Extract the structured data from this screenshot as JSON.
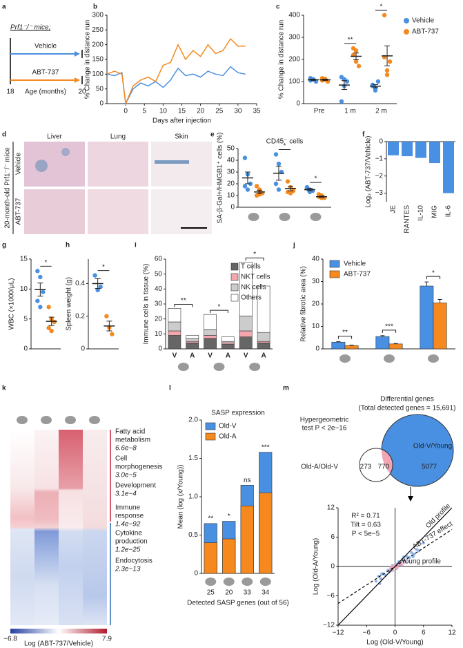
{
  "panel_labels": [
    "a",
    "b",
    "c",
    "d",
    "e",
    "f",
    "g",
    "h",
    "i",
    "j",
    "k",
    "l",
    "m"
  ],
  "diagram_a": {
    "title": "Prf1⁻/⁻ mice;",
    "arms": [
      {
        "name": "Vehicle",
        "color": "#4a90e2"
      },
      {
        "name": "ABT-737",
        "color": "#f5891f"
      }
    ],
    "start": "18",
    "end": "20",
    "axis_label": "Age (months)"
  },
  "images_d": {
    "columns": [
      "Liver",
      "Lung",
      "Skin"
    ],
    "rows": [
      "Vehicle",
      "ABT-737"
    ],
    "group_label": "20-month-old Prf1⁻/⁻ mice"
  },
  "chart_data": [
    {
      "type": "line",
      "xlabel": "Days after injection",
      "ylabel": "% Change in distance run",
      "x": [
        -5,
        -3,
        -1,
        0,
        2,
        4,
        6,
        8,
        10,
        12,
        14,
        16,
        18,
        20,
        22,
        24,
        26,
        28,
        30,
        32
      ],
      "xlim": [
        -5,
        35
      ],
      "xticks": [
        0,
        5,
        10,
        15,
        20,
        25,
        30,
        35
      ],
      "ylim": [
        0,
        300
      ],
      "yticks": [
        0,
        50,
        100,
        150,
        200,
        250,
        300
      ],
      "series": [
        {
          "color": "#4a90e2",
          "values": [
            100,
            95,
            105,
            0,
            50,
            70,
            60,
            75,
            55,
            80,
            120,
            95,
            100,
            90,
            110,
            100,
            95,
            125,
            105,
            100
          ]
        },
        {
          "color": "#f5891f",
          "values": [
            100,
            110,
            100,
            0,
            60,
            80,
            90,
            75,
            130,
            140,
            200,
            150,
            180,
            160,
            200,
            170,
            180,
            220,
            195,
            195
          ]
        }
      ]
    },
    {
      "type": "dot",
      "ylabel": "% Change in distance run",
      "legend": "right",
      "categories": [
        "Pre",
        "1 m",
        "2 m"
      ],
      "ylim": [
        0,
        400
      ],
      "yticks": [
        0,
        100,
        200,
        300,
        400
      ],
      "significance": [
        null,
        "**",
        "*"
      ],
      "series": [
        {
          "name": "Vehicle",
          "color": "#4a90e2",
          "groups": [
            {
              "points": [
                105,
                110,
                100,
                115,
                108
              ],
              "mean": 108,
              "sem": 3
            },
            {
              "points": [
                120,
                80,
                100,
                10,
                110
              ],
              "mean": 84,
              "sem": 20
            },
            {
              "points": [
                85,
                70,
                100,
                80,
                60
              ],
              "mean": 79,
              "sem": 7
            }
          ]
        },
        {
          "name": "ABT-737",
          "color": "#f5891f",
          "groups": [
            {
              "points": [
                105,
                112,
                100,
                115,
                108
              ],
              "mean": 108,
              "sem": 3
            },
            {
              "points": [
                250,
                190,
                170,
                220,
                240
              ],
              "mean": 214,
              "sem": 15
            },
            {
              "points": [
                400,
                150,
                190,
                210,
                130
              ],
              "mean": 216,
              "sem": 45
            }
          ]
        }
      ]
    },
    {
      "type": "dot",
      "title": "CD45⁻ cells",
      "ylabel": "SA-β-Gal+/HMGB1⁺ cells (%)",
      "categories": [
        null,
        null,
        null
      ],
      "ylim": [
        0,
        50
      ],
      "yticks": [
        0,
        10,
        20,
        30,
        40,
        50
      ],
      "significance": [
        null,
        "*",
        "*"
      ],
      "series": [
        {
          "color": "#4a90e2",
          "groups": [
            {
              "points": [
                42,
                28,
                20,
                18,
                15
              ],
              "mean": 25,
              "sem": 5
            },
            {
              "points": [
                45,
                37,
                30,
                20,
                15
              ],
              "mean": 29,
              "sem": 6
            },
            {
              "points": [
                17,
                15,
                14,
                16,
                13
              ],
              "mean": 15,
              "sem": 1
            }
          ]
        },
        {
          "color": "#f5891f",
          "groups": [
            {
              "points": [
                18,
                15,
                12,
                10,
                11
              ],
              "mean": 13,
              "sem": 1.5
            },
            {
              "points": [
                22,
                17,
                14,
                13,
                12
              ],
              "mean": 16,
              "sem": 2
            },
            {
              "points": [
                11,
                10,
                8,
                9,
                8
              ],
              "mean": 9,
              "sem": 0.6
            }
          ]
        }
      ]
    },
    {
      "type": "bar",
      "ylabel": "Log₂ (ABT-737/Vehicle)",
      "color": "#4a90e2",
      "categories": [
        "JE",
        "RANTES",
        "IL-10",
        "MIG",
        "IL-6"
      ],
      "values": [
        -0.8,
        -0.85,
        -0.95,
        -1.25,
        -3.0
      ],
      "ylim": [
        -3.5,
        0
      ],
      "yticks": [
        0,
        {
          "value": -1,
          "label": "−1"
        },
        {
          "value": -2,
          "label": "−2"
        },
        {
          "value": -3,
          "label": "−3"
        }
      ]
    },
    {
      "type": "dot",
      "ylabel": "WBC (×1000/μL)",
      "categories": [
        null
      ],
      "ylim": [
        0,
        15
      ],
      "yticks": [
        0,
        5,
        10,
        15
      ],
      "significance": [
        "*"
      ],
      "series": [
        {
          "color": "#4a90e2",
          "groups": [
            {
              "points": [
                13,
                12,
                9.5,
                8,
                7
              ],
              "mean": 9.9,
              "sem": 1.1
            }
          ]
        },
        {
          "color": "#f5891f",
          "groups": [
            {
              "points": [
                7,
                5,
                4.5,
                3.5,
                3
              ],
              "mean": 4.6,
              "sem": 0.7
            }
          ]
        }
      ]
    },
    {
      "type": "dot",
      "ylabel": "Spleen weight (g)",
      "categories": [
        null
      ],
      "ylim": [
        0,
        0.55
      ],
      "yticks": [
        0,
        0.2,
        0.4
      ],
      "significance": [
        "*"
      ],
      "series": [
        {
          "color": "#4a90e2",
          "groups": [
            {
              "points": [
                0.45,
                0.36,
                0.38
              ],
              "mean": 0.4,
              "sem": 0.03
            }
          ]
        },
        {
          "color": "#f5891f",
          "groups": [
            {
              "points": [
                0.2,
                0.13,
                0.09
              ],
              "mean": 0.14,
              "sem": 0.03
            }
          ]
        }
      ]
    },
    {
      "type": "stacked_bar",
      "ylabel": "Immune cells in tissue (%)",
      "categories": [
        "V",
        "A",
        "V",
        "A",
        "V",
        "A"
      ],
      "category_colors": [
        "#4a90e2",
        "#f5891f",
        "#4a90e2",
        "#f5891f",
        "#4a90e2",
        "#f5891f"
      ],
      "ylim": [
        0,
        60
      ],
      "yticks": [
        0,
        10,
        20,
        30,
        40,
        50,
        60
      ],
      "significance": [
        "**",
        null,
        "*",
        null,
        "*",
        null
      ],
      "series": [
        {
          "name": "T cells",
          "color": "#666666",
          "values": [
            9,
            4,
            7,
            3,
            8,
            4
          ]
        },
        {
          "name": "NKT cells",
          "color": "#f4a6ae",
          "values": [
            3,
            1,
            2,
            1,
            4,
            1
          ]
        },
        {
          "name": "NK cells",
          "color": "#cccccc",
          "values": [
            6,
            2,
            4,
            1,
            10,
            6
          ]
        },
        {
          "name": "Others",
          "color": "#ffffff",
          "values": [
            9,
            2,
            10,
            3,
            36,
            31
          ]
        }
      ]
    },
    {
      "type": "grouped_bar",
      "ylabel": "Relative fibrotic area (%)",
      "categories": [
        null,
        null,
        null
      ],
      "ylim": [
        0,
        40
      ],
      "yticks": [
        0,
        10,
        20,
        30,
        40
      ],
      "significance": [
        "**",
        "***",
        "*"
      ],
      "series": [
        {
          "name": "Vehicle",
          "color": "#4a90e2",
          "values": [
            3,
            5.5,
            28
          ],
          "errors": [
            0.2,
            0.4,
            1.8
          ]
        },
        {
          "name": "ABT-737",
          "color": "#f5891f",
          "values": [
            1.5,
            2.2,
            20.5
          ],
          "errors": [
            0.2,
            0.2,
            1.5
          ]
        }
      ]
    },
    {
      "type": "overlay_bar",
      "title": "SASP expression",
      "ylabel": "Mean (log (x/Young))",
      "xlabel": "Detected SASP genes (out of 56)",
      "categories": [
        null,
        null,
        null,
        null
      ],
      "detected_genes": [
        25,
        20,
        33,
        34
      ],
      "ylim": [
        0,
        2
      ],
      "yticks": [
        0,
        0.5,
        {
          "value": 1,
          "label": "1.0"
        },
        1.5,
        {
          "value": 2,
          "label": "2.0"
        }
      ],
      "significance": [
        "**",
        "*",
        "ns",
        "***"
      ],
      "series": [
        {
          "name": "Old-V",
          "color": "#4a90e2",
          "values": [
            0.65,
            0.68,
            1.15,
            1.58
          ]
        },
        {
          "name": "Old-A",
          "color": "#f5891f",
          "values": [
            0.4,
            0.45,
            0.88,
            1.05
          ]
        }
      ]
    },
    {
      "type": "scatter",
      "xlabel": "Log (Old-V/Young)",
      "ylabel": "Log (Old-A/Young)",
      "xlim": [
        -12,
        12
      ],
      "ylim": [
        -12,
        12
      ],
      "fit_slope": 0.63,
      "xticks": [
        {
          "value": -12,
          "label": "−12"
        },
        {
          "value": -6,
          "label": "−6"
        },
        0,
        6,
        12
      ],
      "yticks": [
        {
          "value": -12,
          "label": "−12"
        },
        {
          "value": -6,
          "label": "−6"
        },
        0,
        6,
        12
      ],
      "annotations": [
        "R² = 0.71",
        "Tilt = 0.63",
        "P < 5e−5",
        "Old profile",
        "ABT-737 effect",
        "Young profile"
      ],
      "series": [
        {
          "color": "#7fa8e6",
          "x": [
            -4,
            -3.5,
            -3,
            -2.5,
            -2,
            -1.5,
            -1,
            -0.5,
            0,
            0.5,
            1,
            1.5,
            2,
            2.5,
            3,
            3.5,
            4,
            4.5,
            5,
            6,
            -2.8,
            -1.2,
            0.3,
            1.8,
            2.2,
            -3.2,
            0.8,
            3.8,
            -0.8,
            1.2
          ],
          "values": [
            -3,
            -2,
            -2.5,
            -1.5,
            -1.8,
            -0.8,
            -0.9,
            0.2,
            0.1,
            0.5,
            0.4,
            1.3,
            1,
            2,
            1.8,
            2.8,
            2.5,
            3.5,
            3.2,
            4.8,
            -1.5,
            -1.1,
            -0.4,
            1.9,
            0.9,
            -3.5,
            1,
            2,
            -0.2,
            0.3
          ]
        },
        {
          "color": "#f2a5b4",
          "x": [
            -1,
            -0.5,
            0,
            0.5,
            1,
            1.5,
            2,
            -0.3,
            0.7,
            1.2,
            0.2,
            -0.8
          ],
          "values": [
            -0.5,
            -0.8,
            0.2,
            -0.2,
            0.6,
            0.3,
            0.9,
            0.1,
            0.4,
            0.8,
            -0.3,
            -0.2
          ]
        }
      ]
    }
  ],
  "heatmap_k": {
    "colorbar_labels": [
      "−6.8",
      "7.9"
    ],
    "colorbar_title": "Log (ABT-737/Vehicle)",
    "terms": [
      {
        "name": [
          "Fatty acid",
          "metabolism"
        ],
        "p": "6.6e−8",
        "color": "#c8243c"
      },
      {
        "name": [
          "Cell",
          "morphogenesis"
        ],
        "p": "3.0e−5",
        "color": "#c8243c"
      },
      {
        "name": [
          "Development"
        ],
        "p": "3.1e−4",
        "color": "#c8243c"
      },
      {
        "name": [
          "Immune",
          "response"
        ],
        "p": "1.4e−92",
        "color": "#2f6db5"
      },
      {
        "name": [
          "Cytokine",
          "production"
        ],
        "p": "1.2e−25",
        "color": "#2f6db5"
      },
      {
        "name": [
          "Endocytosis"
        ],
        "p": "2.3e−13",
        "color": "#2f6db5"
      }
    ]
  },
  "venn_m": {
    "title": "Differential genes",
    "subtitle": "(Total detected genes = 15,691)",
    "test": [
      "Hypergeometric",
      "test P < 2e−16"
    ],
    "big_set": "Old-V/Young",
    "small_set": "Old-A/Old-V",
    "big_only": 5077,
    "overlap": 770,
    "small_only": 273
  }
}
